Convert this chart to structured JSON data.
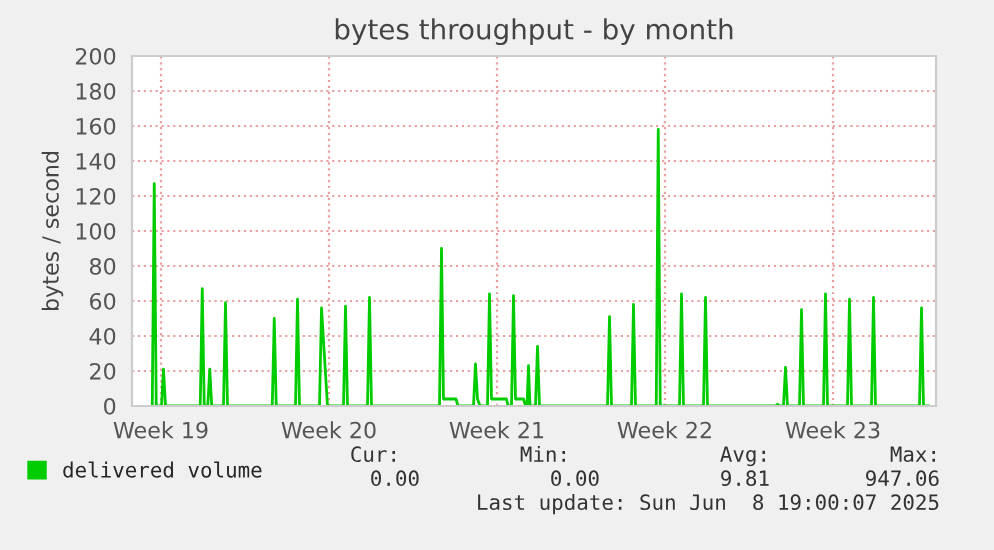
{
  "chart_data": {
    "type": "line",
    "title": "bytes throughput - by month",
    "ylabel": "bytes / second",
    "xlim": [
      "2025-05-06T07:00",
      "2025-06-08T19:00"
    ],
    "xticks": [
      {
        "value": "2025-05-07T12:00",
        "label": "Week 19"
      },
      {
        "value": "2025-05-14T12:00",
        "label": "Week 20"
      },
      {
        "value": "2025-05-21T12:00",
        "label": "Week 21"
      },
      {
        "value": "2025-05-28T12:00",
        "label": "Week 22"
      },
      {
        "value": "2025-06-04T12:00",
        "label": "Week 23"
      }
    ],
    "ylim": [
      0,
      200
    ],
    "yticks": [
      0,
      20,
      40,
      60,
      80,
      100,
      120,
      140,
      160,
      180,
      200
    ],
    "grid": true,
    "legend": "bottom left",
    "series": [
      {
        "name": "delivered volume",
        "color": "#00cc00",
        "x": [
          "2025-05-07T03:15",
          "2025-05-07T05:15",
          "2025-05-07T07:15",
          "2025-05-07T12:30",
          "2025-05-07T14:30",
          "2025-05-07T16:30",
          "2025-05-09T03:15",
          "2025-05-09T05:15",
          "2025-05-09T07:15",
          "2025-05-09T10:45",
          "2025-05-09T12:45",
          "2025-05-09T14:45",
          "2025-05-10T02:30",
          "2025-05-10T04:30",
          "2025-05-10T06:30",
          "2025-05-12T03:15",
          "2025-05-12T05:15",
          "2025-05-12T07:15",
          "2025-05-13T02:30",
          "2025-05-13T04:30",
          "2025-05-13T06:30",
          "2025-05-14T02:30",
          "2025-05-14T04:30",
          "2025-05-14T10:30",
          "2025-05-15T02:30",
          "2025-05-15T04:30",
          "2025-05-15T06:30",
          "2025-05-16T02:30",
          "2025-05-16T04:30",
          "2025-05-16T06:30",
          "2025-05-19T02:30",
          "2025-05-19T04:30",
          "2025-05-19T06:30",
          "2025-05-19T19:00",
          "2025-05-19T21:00",
          "2025-05-20T12:30",
          "2025-05-20T14:30",
          "2025-05-20T16:30",
          "2025-05-20T19:00",
          "2025-05-21T02:30",
          "2025-05-21T04:30",
          "2025-05-21T06:30",
          "2025-05-21T21:30",
          "2025-05-21T23:00",
          "2025-05-22T02:30",
          "2025-05-22T04:30",
          "2025-05-22T06:30",
          "2025-05-22T14:30",
          "2025-05-22T16:30",
          "2025-05-22T18:00",
          "2025-05-22T19:30",
          "2025-05-22T21:00",
          "2025-05-23T02:30",
          "2025-05-23T04:30",
          "2025-05-23T06:30",
          "2025-05-26T02:30",
          "2025-05-26T04:30",
          "2025-05-26T06:30",
          "2025-05-27T02:30",
          "2025-05-27T04:30",
          "2025-05-27T06:30",
          "2025-05-28T03:15",
          "2025-05-28T05:15",
          "2025-05-28T07:15",
          "2025-05-29T02:30",
          "2025-05-29T04:30",
          "2025-05-29T06:30",
          "2025-05-30T02:30",
          "2025-05-30T04:30",
          "2025-05-30T06:30",
          "2025-06-02T02:30",
          "2025-06-02T04:30",
          "2025-06-02T06:30",
          "2025-06-02T10:30",
          "2025-06-02T12:30",
          "2025-06-02T14:30",
          "2025-06-03T02:30",
          "2025-06-03T04:30",
          "2025-06-03T06:30",
          "2025-06-04T02:30",
          "2025-06-04T04:30",
          "2025-06-04T06:30",
          "2025-06-05T02:30",
          "2025-06-05T04:30",
          "2025-06-05T06:30",
          "2025-06-06T02:30",
          "2025-06-06T04:30",
          "2025-06-06T06:30",
          "2025-06-08T02:30",
          "2025-06-08T04:30",
          "2025-06-08T06:30",
          "2025-06-08T12:00"
        ],
        "values": [
          0,
          127,
          0,
          0,
          21,
          0,
          0,
          67,
          0,
          0,
          21,
          0,
          0,
          59,
          0,
          0,
          50,
          0,
          0,
          61,
          0,
          0,
          56,
          0,
          0,
          57,
          0,
          0,
          62,
          0,
          0,
          90,
          4,
          4,
          0,
          0,
          24,
          4,
          0,
          0,
          64,
          4,
          4,
          0,
          0,
          63,
          4,
          4,
          0,
          0,
          23,
          0,
          0,
          34,
          0,
          0,
          51,
          0,
          0,
          58,
          0,
          0,
          158,
          0,
          0,
          64,
          0,
          0,
          62,
          0,
          0,
          1,
          0,
          0,
          22,
          0,
          0,
          55,
          0,
          0,
          64,
          0,
          0,
          61,
          0,
          0,
          62,
          0,
          0,
          56,
          0,
          0
        ]
      }
    ],
    "annotations": [
      "Cur:",
      "Min:",
      "Avg:",
      "Max:",
      "0.00",
      "0.00",
      "9.81",
      "947.06",
      "Last update: Sun Jun  8 19:00:07 2025"
    ]
  }
}
